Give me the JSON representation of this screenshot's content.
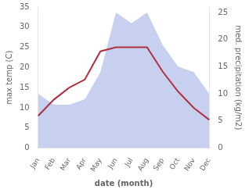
{
  "chart_data": {
    "type": "line",
    "categories": [
      "Jan",
      "Feb",
      "Mar",
      "Apr",
      "May",
      "Jun",
      "Jul",
      "Aug",
      "Sep",
      "Oct",
      "Nov",
      "Dec"
    ],
    "series": [
      {
        "type": "area",
        "axis": "y2",
        "color": "#c8d0f0",
        "values": [
          10,
          8,
          8,
          9,
          14,
          25,
          23,
          25,
          19,
          15,
          14,
          10
        ]
      },
      {
        "type": "line",
        "color": "#b03040",
        "values": [
          8,
          12,
          15,
          17,
          24,
          25,
          25,
          25,
          19,
          14,
          10,
          7
        ]
      }
    ],
    "xlabel": "date (month)",
    "ylabel": "max temp (C)",
    "y2label": "med. precipitation (kg/m2)",
    "ylim": [
      0,
      35
    ],
    "yticks": [
      0,
      5,
      10,
      15,
      20,
      25,
      30,
      35
    ],
    "y2lim": [
      0,
      26
    ],
    "y2ticks": [
      0,
      5,
      10,
      15,
      20,
      25
    ],
    "grid": false
  }
}
